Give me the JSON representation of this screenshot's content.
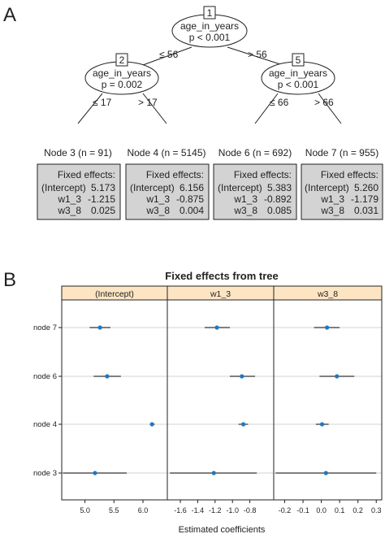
{
  "panel_a": {
    "label": "A",
    "split_nodes": [
      {
        "id": "1",
        "variable": "age_in_years",
        "pvalue": "p < 0.001",
        "left_edge": "≤ 56",
        "right_edge": "> 56"
      },
      {
        "id": "2",
        "variable": "age_in_years",
        "pvalue": "p = 0.002",
        "left_edge": "≤ 17",
        "right_edge": "> 17"
      },
      {
        "id": "5",
        "variable": "age_in_years",
        "pvalue": "p < 0.001",
        "left_edge": "≤ 66",
        "right_edge": "> 66"
      }
    ],
    "terminal_nodes": [
      {
        "title": "Node 3 (n = 91)",
        "header": "Fixed effects:",
        "rows": [
          [
            "(Intercept)",
            "5.173"
          ],
          [
            "w1_3",
            "-1.215"
          ],
          [
            "w3_8",
            "0.025"
          ]
        ]
      },
      {
        "title": "Node 4 (n = 5145)",
        "header": "Fixed effects:",
        "rows": [
          [
            "(Intercept)",
            "6.156"
          ],
          [
            "w1_3",
            "-0.875"
          ],
          [
            "w3_8",
            "0.004"
          ]
        ]
      },
      {
        "title": "Node 6 (n = 692)",
        "header": "Fixed effects:",
        "rows": [
          [
            "(Intercept)",
            "5.383"
          ],
          [
            "w1_3",
            "-0.892"
          ],
          [
            "w3_8",
            "0.085"
          ]
        ]
      },
      {
        "title": "Node 7 (n = 955)",
        "header": "Fixed effects:",
        "rows": [
          [
            "(Intercept)",
            "5.260"
          ],
          [
            "w1_3",
            "-1.179"
          ],
          [
            "w3_8",
            "0.031"
          ]
        ]
      }
    ]
  },
  "panel_b": {
    "label": "B",
    "title": "Fixed effects from tree",
    "xlabel": "Estimated coefficients",
    "rows": [
      "node 7",
      "node 6",
      "node 4",
      "node 3"
    ],
    "colors": {
      "point": "#1f77c4",
      "strip": "#fde5c3",
      "grid": "#d3d3d3",
      "ci": "#333333"
    },
    "facets": [
      {
        "name": "(Intercept)",
        "xlim": [
          4.6,
          6.42
        ],
        "ticks": [
          "5.0",
          "5.5",
          "6.0"
        ],
        "points": [
          {
            "row": "node 7",
            "est": 5.26,
            "lo": 5.08,
            "hi": 5.44
          },
          {
            "row": "node 6",
            "est": 5.383,
            "lo": 5.15,
            "hi": 5.62
          },
          {
            "row": "node 4",
            "est": 6.156,
            "lo": 6.12,
            "hi": 6.2
          },
          {
            "row": "node 3",
            "est": 5.173,
            "lo": 4.62,
            "hi": 5.72
          }
        ]
      },
      {
        "name": "w1_3",
        "xlim": [
          -1.75,
          -0.525
        ],
        "ticks": [
          "-1.6",
          "-1.4",
          "-1.2",
          "-1.0",
          "-0.8"
        ],
        "points": [
          {
            "row": "node 7",
            "est": -1.179,
            "lo": -1.32,
            "hi": -1.03
          },
          {
            "row": "node 6",
            "est": -0.892,
            "lo": -1.03,
            "hi": -0.74
          },
          {
            "row": "node 4",
            "est": -0.875,
            "lo": -0.93,
            "hi": -0.82
          },
          {
            "row": "node 3",
            "est": -1.215,
            "lo": -1.72,
            "hi": -0.72
          }
        ]
      },
      {
        "name": "w3_8",
        "xlim": [
          -0.26,
          0.33
        ],
        "ticks": [
          "-0.2",
          "-0.1",
          "0.0",
          "0.1",
          "0.2",
          "0.3"
        ],
        "points": [
          {
            "row": "node 7",
            "est": 0.031,
            "lo": -0.04,
            "hi": 0.1
          },
          {
            "row": "node 6",
            "est": 0.085,
            "lo": -0.01,
            "hi": 0.18
          },
          {
            "row": "node 4",
            "est": 0.004,
            "lo": -0.03,
            "hi": 0.04
          },
          {
            "row": "node 3",
            "est": 0.025,
            "lo": -0.25,
            "hi": 0.3
          }
        ]
      }
    ]
  }
}
